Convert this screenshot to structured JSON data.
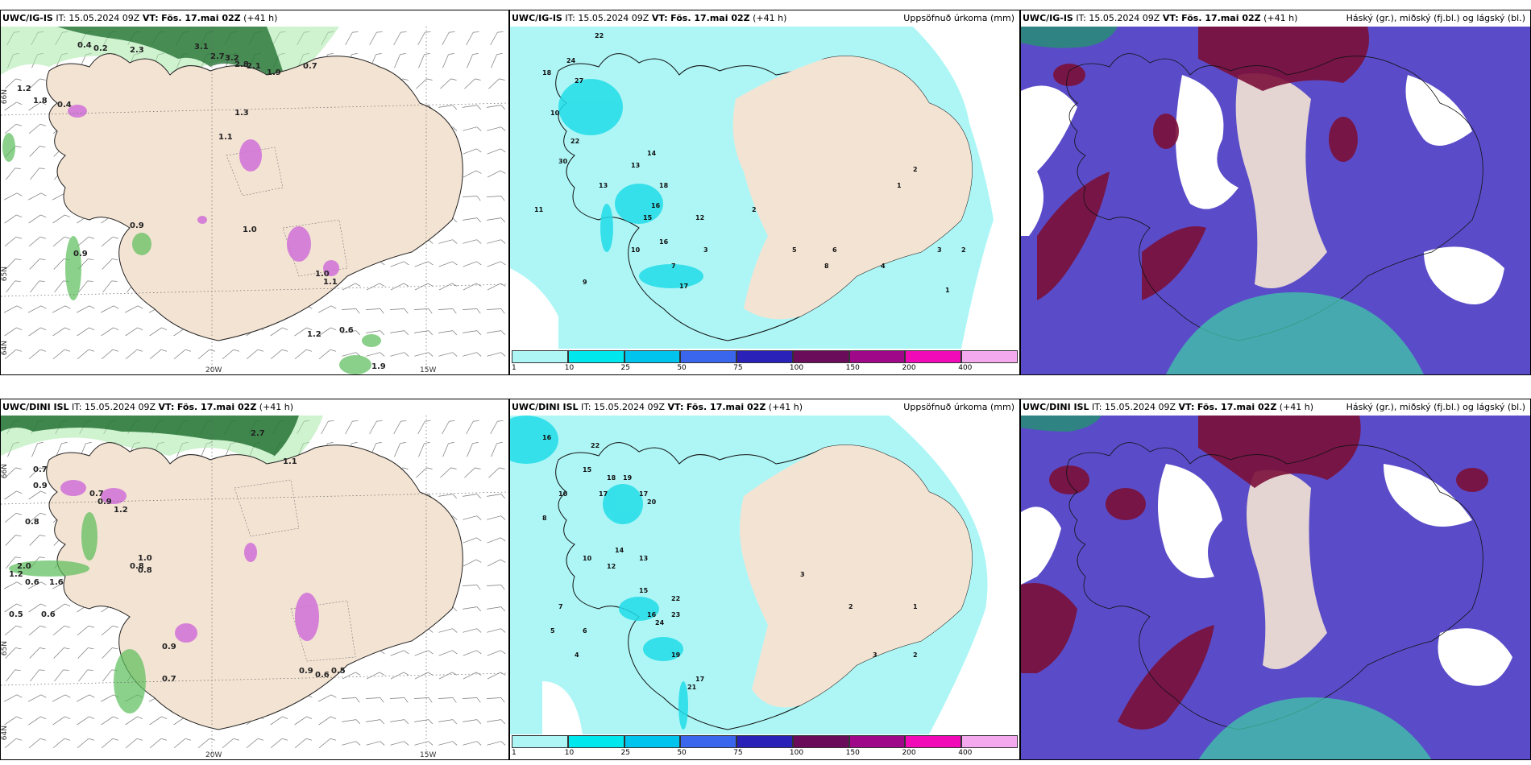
{
  "panels": [
    {
      "model": "UWC/IG-IS",
      "it_label": "IT:",
      "it": "15.05.2024 09Z",
      "vt_label": "VT:",
      "vt": "Fös. 17.mai 02Z",
      "lead": "(+41 h)",
      "right": ""
    },
    {
      "model": "UWC/IG-IS",
      "it_label": "IT:",
      "it": "15.05.2024 09Z",
      "vt_label": "VT:",
      "vt": "Fös. 17.mai 02Z",
      "lead": "(+41 h)",
      "right": "Uppsöfnuð úrkoma (mm)"
    },
    {
      "model": "UWC/IG-IS",
      "it_label": "IT:",
      "it": "15.05.2024 09Z",
      "vt_label": "VT:",
      "vt": "Fös. 17.mai 02Z",
      "lead": "(+41 h)",
      "right": "Háský (gr.), miðský (fj.bl.) og lágský (bl.)"
    },
    {
      "model": "UWC/DINI ISL",
      "it_label": "IT:",
      "it": "15.05.2024 09Z",
      "vt_label": "VT:",
      "vt": "Fös. 17.mai 02Z",
      "lead": "(+41 h)",
      "right": ""
    },
    {
      "model": "UWC/DINI ISL",
      "it_label": "IT:",
      "it": "15.05.2024 09Z",
      "vt_label": "VT:",
      "vt": "Fös. 17.mai 02Z",
      "lead": "(+41 h)",
      "right": "Uppsöfnuð úrkoma (mm)"
    },
    {
      "model": "UWC/DINI ISL",
      "it_label": "IT:",
      "it": "15.05.2024 09Z",
      "vt_label": "VT:",
      "vt": "Fös. 17.mai 02Z",
      "lead": "(+41 h)",
      "right": "Háský (gr.), miðský (fj.bl.) og lágský (bl.)"
    }
  ],
  "axis_labels": {
    "lon_20w": "20W",
    "lon_15w": "15W",
    "lat_66n": "66N",
    "lat_65n": "65N",
    "lat_64n": "64N"
  },
  "colorbar": {
    "labels": [
      "1",
      "10",
      "25",
      "50",
      "75",
      "100",
      "150",
      "200",
      "400"
    ],
    "colors": [
      "#aef6f6",
      "#00e8ee",
      "#00c4ee",
      "#3a66ee",
      "#2a22b8",
      "#6a0c5a",
      "#a0088a",
      "#f00ab8",
      "#f4a8ee"
    ]
  },
  "colors": {
    "land": "#f3e3d3",
    "sea": "#ffffff",
    "precip_light": "#aef6f6",
    "precip_mid": "#22dde8",
    "cloud_high": "#7a1038",
    "cloud_mid": "#5a4cc8",
    "cloud_low": "#40c8a8",
    "green_light": "#a8e8a8",
    "green_dark": "#1a6a2a",
    "magenta": "#d070d8"
  },
  "precip_labels_ig": [
    "22",
    "18",
    "24",
    "27",
    "10",
    "22",
    "30",
    "13",
    "14",
    "16",
    "15",
    "13",
    "18",
    "16",
    "12",
    "10",
    "17",
    "11",
    "9",
    "7",
    "3",
    "2",
    "5",
    "8",
    "6",
    "4",
    "1",
    "2",
    "3",
    "1",
    "2"
  ],
  "precip_labels_dini": [
    "16",
    "22",
    "15",
    "18",
    "17",
    "19",
    "17",
    "10",
    "20",
    "14",
    "13",
    "15",
    "16",
    "24",
    "23",
    "21",
    "22",
    "17",
    "8",
    "19",
    "12",
    "10",
    "7",
    "6",
    "5",
    "4",
    "3",
    "2",
    "1",
    "3",
    "2"
  ],
  "snow_labels_ig": [
    "0.4",
    "0.2",
    "2.3",
    "3.1",
    "2.7",
    "3.2",
    "2.8",
    "2.1",
    "1.9",
    "0.7",
    "1.2",
    "1.8",
    "0.4",
    "1.3",
    "1.1",
    "0.9",
    "0.9",
    "1.0",
    "1.0",
    "1.1",
    "0.6",
    "1.2",
    "1.9"
  ],
  "snow_labels_dini": [
    "2.7",
    "1.1",
    "0.7",
    "0.9",
    "0.8",
    "0.7",
    "0.9",
    "1.2",
    "1.2",
    "0.8",
    "1.0",
    "0.8",
    "2.0",
    "0.6",
    "1.6",
    "0.5",
    "0.6",
    "0.9",
    "0.7",
    "0.9",
    "0.6",
    "0.5"
  ]
}
